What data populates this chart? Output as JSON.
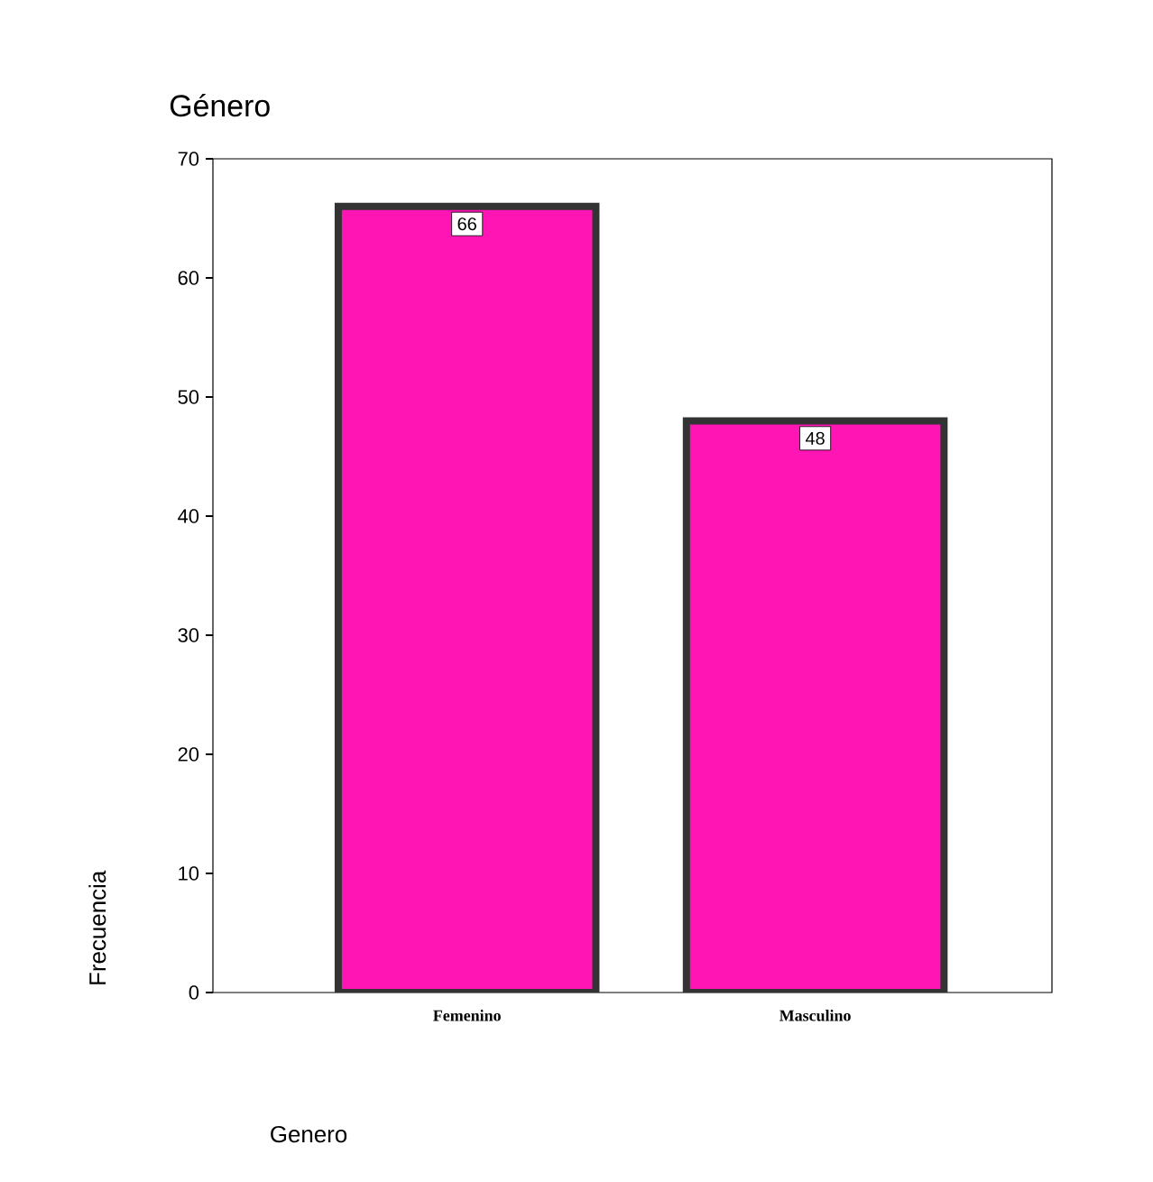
{
  "chart_data": {
    "type": "bar",
    "title": "Género",
    "xlabel": "Genero",
    "ylabel": "Frecuencia",
    "categories": [
      "Femenino",
      "Masculino"
    ],
    "values": [
      66,
      48
    ],
    "color": "#ff14b4",
    "ylim": [
      0,
      70
    ],
    "yticks": [
      0,
      10,
      20,
      30,
      40,
      50,
      60,
      70
    ],
    "data_labels": true
  }
}
